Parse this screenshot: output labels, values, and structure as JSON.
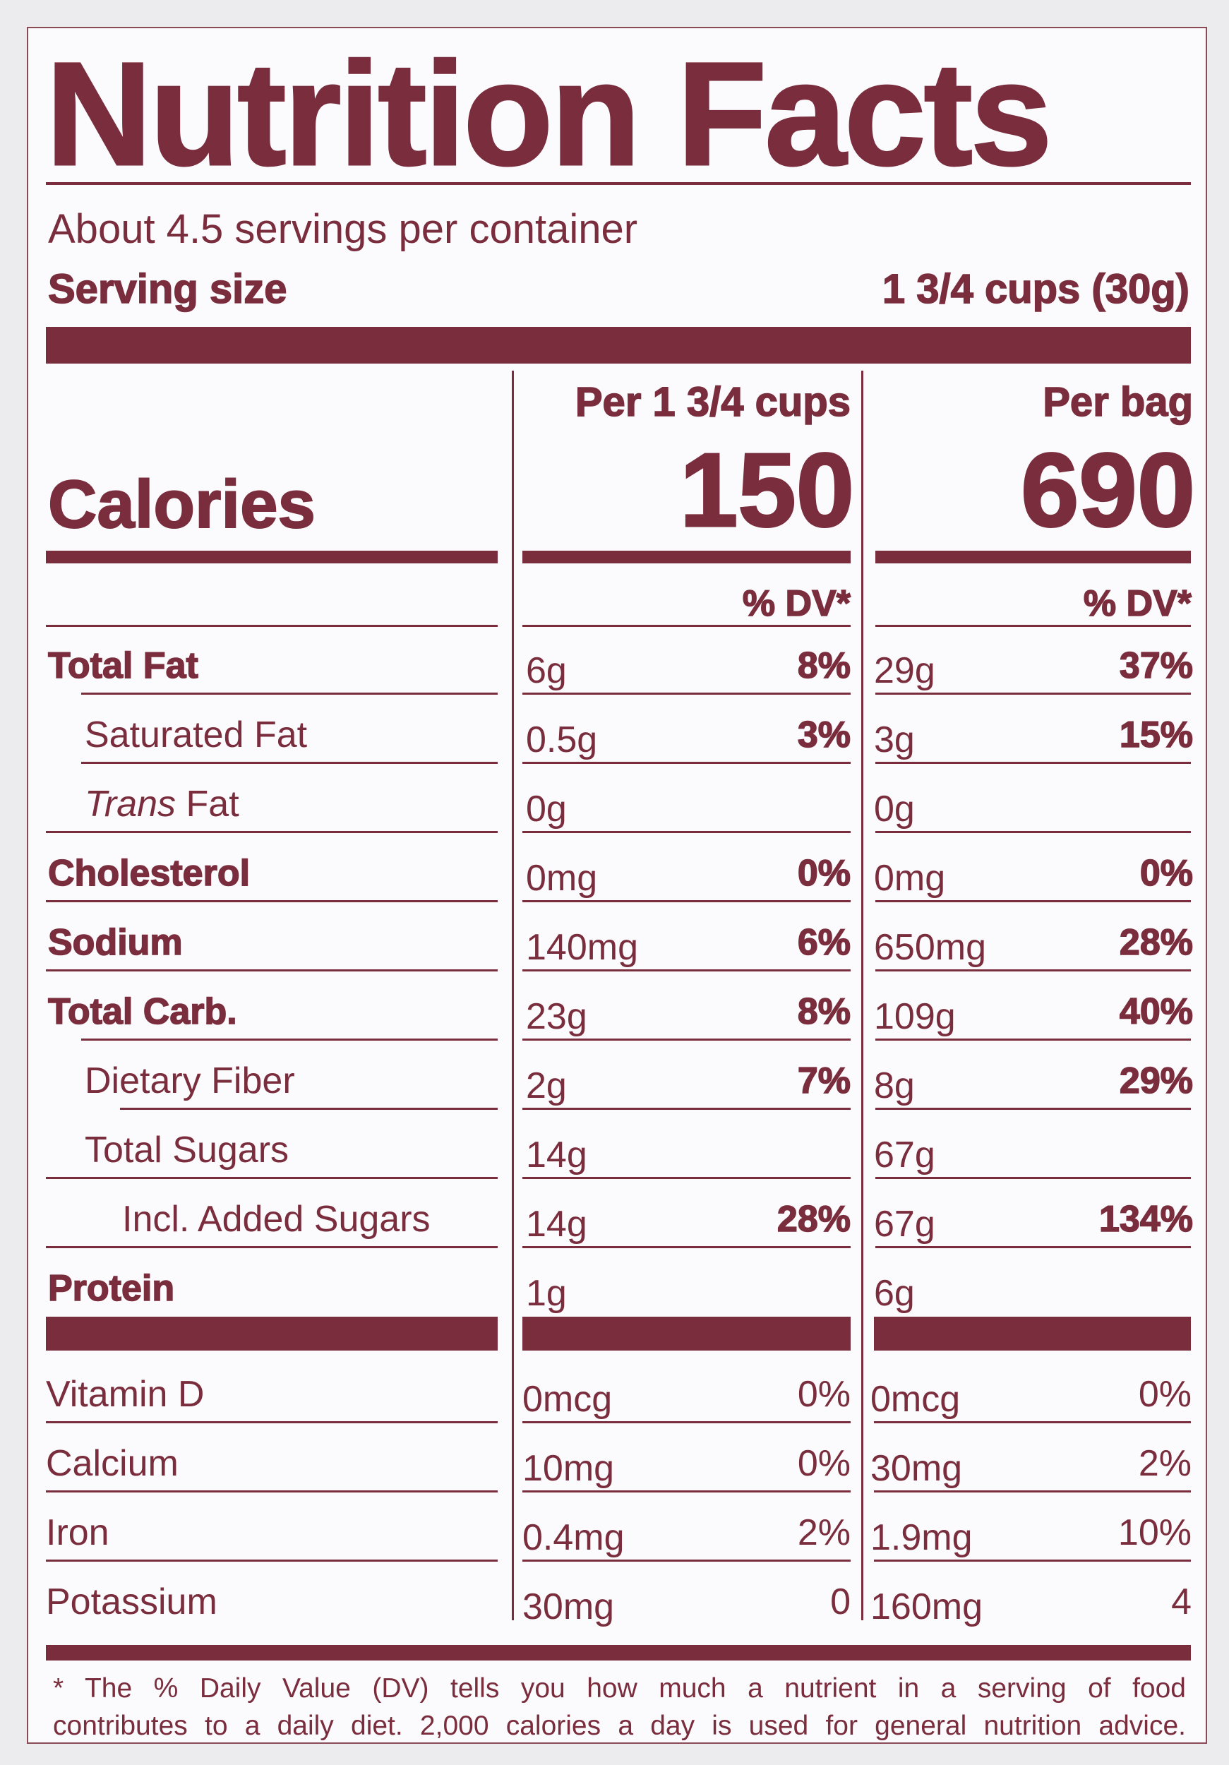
{
  "title": "Nutrition Facts",
  "servings_per_container": "About 4.5 servings per container",
  "serving_size_label": "Serving size",
  "serving_size_value": "1 3/4 cups (30g)",
  "calories_label": "Calories",
  "columns": [
    {
      "header": "Per 1 3/4 cups",
      "calories": "150",
      "dv_header": "% DV*"
    },
    {
      "header": "Per bag",
      "calories": "690",
      "dv_header": "% DV*"
    }
  ],
  "nutrients": [
    {
      "label": "Total Fat",
      "c1_amount": "6g",
      "c1_dv": "8%",
      "c2_amount": "29g",
      "c2_dv": "37%"
    },
    {
      "label": "Saturated Fat",
      "c1_amount": "0.5g",
      "c1_dv": "3%",
      "c2_amount": "3g",
      "c2_dv": "15%"
    },
    {
      "label_italic": "Trans",
      "label": " Fat",
      "c1_amount": "0g",
      "c1_dv": "",
      "c2_amount": "0g",
      "c2_dv": ""
    },
    {
      "label": "Cholesterol",
      "c1_amount": "0mg",
      "c1_dv": "0%",
      "c2_amount": "0mg",
      "c2_dv": "0%"
    },
    {
      "label": "Sodium",
      "c1_amount": "140mg",
      "c1_dv": "6%",
      "c2_amount": "650mg",
      "c2_dv": "28%"
    },
    {
      "label": "Total Carb.",
      "c1_amount": "23g",
      "c1_dv": "8%",
      "c2_amount": "109g",
      "c2_dv": "40%"
    },
    {
      "label": "Dietary Fiber",
      "c1_amount": "2g",
      "c1_dv": "7%",
      "c2_amount": "8g",
      "c2_dv": "29%"
    },
    {
      "label": "Total Sugars",
      "c1_amount": "14g",
      "c1_dv": "",
      "c2_amount": "67g",
      "c2_dv": ""
    },
    {
      "label": "Incl. Added Sugars",
      "c1_amount": "14g",
      "c1_dv": "28%",
      "c2_amount": "67g",
      "c2_dv": "134%"
    },
    {
      "label": "Protein",
      "c1_amount": "1g",
      "c1_dv": "",
      "c2_amount": "6g",
      "c2_dv": ""
    }
  ],
  "vitamins": [
    {
      "label": "Vitamin D",
      "c1_amount": "0mcg",
      "c1_dv": "0%",
      "c2_amount": "0mcg",
      "c2_dv": "0%"
    },
    {
      "label": "Calcium",
      "c1_amount": "10mg",
      "c1_dv": "0%",
      "c2_amount": "30mg",
      "c2_dv": "2%"
    },
    {
      "label": "Iron",
      "c1_amount": "0.4mg",
      "c1_dv": "2%",
      "c2_amount": "1.9mg",
      "c2_dv": "10%"
    },
    {
      "label": "Potassium",
      "c1_amount": "30mg",
      "c1_dv": "0",
      "c2_amount": "160mg",
      "c2_dv": "4"
    }
  ],
  "footnote_line1": "* The % Daily Value (DV) tells you how much a nutrient in a serving of food",
  "footnote_line2": "contributes to a daily diet. 2,000 calories a day is used for general nutrition advice.",
  "colors": {
    "ink": "#7a2d3c",
    "background": "#fbfafd"
  }
}
